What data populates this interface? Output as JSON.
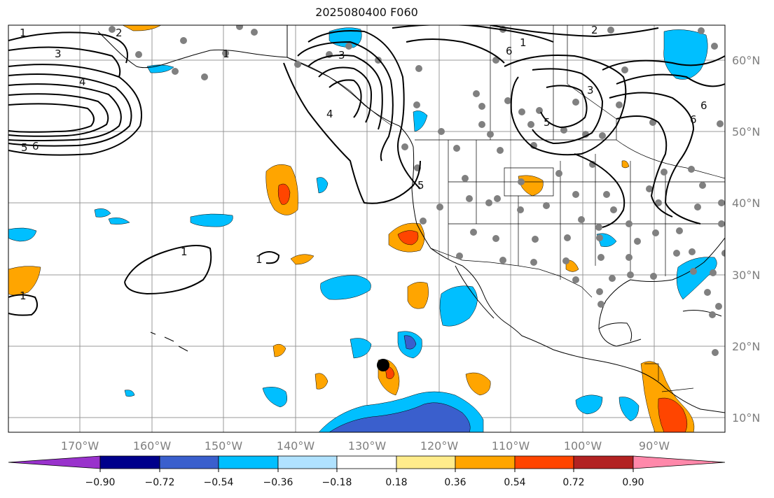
{
  "title": "2025080400 F060",
  "lat_labels": [
    "60°N",
    "50°N",
    "40°N",
    "30°N",
    "20°N",
    "10°N"
  ],
  "lon_labels": [
    "170°W",
    "160°W",
    "150°W",
    "140°W",
    "130°W",
    "120°W",
    "110°W",
    "100°W",
    "90°W"
  ],
  "contour_labels": [
    "1",
    "2",
    "3",
    "4",
    "5",
    "6",
    "1",
    "3",
    "4",
    "5",
    "6",
    "1",
    "2",
    "3",
    "5",
    "6",
    "6",
    "1",
    "1",
    "1"
  ],
  "colorbar": {
    "ticks": [
      "−0.90",
      "−0.72",
      "−0.54",
      "−0.36",
      "−0.18",
      "0.18",
      "0.36",
      "0.54",
      "0.72",
      "0.90"
    ],
    "colors": [
      "#9932cc",
      "#00008b",
      "#3a5fcd",
      "#00bfff",
      "#b0e2ff",
      "#ffffff",
      "#ffec8b",
      "#ffa500",
      "#ff4500",
      "#b22222",
      "#ff88aa"
    ]
  },
  "colors": {
    "land_dots": "#808080",
    "contour": "#000000",
    "grid": "#999999",
    "marker": "#000000"
  }
}
